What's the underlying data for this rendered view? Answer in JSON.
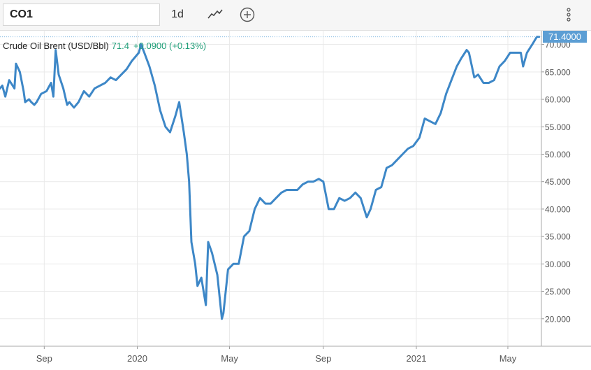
{
  "toolbar": {
    "symbol": "CO1",
    "interval": "1d",
    "icons": {
      "chart_type": "line-chart-icon",
      "add": "plus-circle-icon",
      "menu": "vertical-dots-icon"
    }
  },
  "legend": {
    "name": "Crude Oil Brent (USD/Bbl)",
    "value": "71.4",
    "change": "+0.0900 (+0.13%)",
    "color": "#1f9e78"
  },
  "price_tag": "71.4000",
  "colors": {
    "line": "#3d87c7",
    "price_tag": "#5c9ed4",
    "grid": "#e9e9e9"
  },
  "chart_data": {
    "type": "line",
    "title": "",
    "xlabel": "",
    "ylabel": "",
    "ylim": [
      15,
      72.5
    ],
    "yticks": [
      20,
      25,
      30,
      35,
      40,
      45,
      50,
      55,
      60,
      65,
      70
    ],
    "ytick_labels": [
      "20.000",
      "25.000",
      "30.000",
      "35.000",
      "40.000",
      "45.000",
      "50.000",
      "55.000",
      "60.000",
      "65.000",
      "70.000"
    ],
    "xlim": [
      "2019-07-05",
      "2021-06-14"
    ],
    "xticks": [
      "2019-09-01",
      "2020-01-01",
      "2020-05-01",
      "2020-09-01",
      "2021-01-01",
      "2021-05-01"
    ],
    "xtick_labels": [
      "Sep",
      "2020",
      "May",
      "Sep",
      "2021",
      "May"
    ],
    "grid": true,
    "y_axis_position": "right",
    "series": [
      {
        "name": "Crude Oil Brent (USD/Bbl)",
        "x": [
          "2019-07-05",
          "2019-07-08",
          "2019-07-12",
          "2019-07-17",
          "2019-07-24",
          "2019-07-26",
          "2019-07-31",
          "2019-08-05",
          "2019-08-07",
          "2019-08-12",
          "2019-08-15",
          "2019-08-19",
          "2019-08-22",
          "2019-08-28",
          "2019-09-04",
          "2019-09-10",
          "2019-09-13",
          "2019-09-16",
          "2019-09-20",
          "2019-09-26",
          "2019-10-01",
          "2019-10-04",
          "2019-10-10",
          "2019-10-16",
          "2019-10-23",
          "2019-10-30",
          "2019-11-06",
          "2019-11-13",
          "2019-11-20",
          "2019-11-27",
          "2019-12-04",
          "2019-12-11",
          "2019-12-18",
          "2019-12-25",
          "2020-01-03",
          "2020-01-06",
          "2020-01-10",
          "2020-01-17",
          "2020-01-24",
          "2020-01-31",
          "2020-02-07",
          "2020-02-13",
          "2020-02-20",
          "2020-02-25",
          "2020-03-02",
          "2020-03-06",
          "2020-03-09",
          "2020-03-12",
          "2020-03-17",
          "2020-03-20",
          "2020-03-25",
          "2020-03-31",
          "2020-04-03",
          "2020-04-08",
          "2020-04-15",
          "2020-04-21",
          "2020-04-23",
          "2020-04-29",
          "2020-05-06",
          "2020-05-13",
          "2020-05-20",
          "2020-05-27",
          "2020-06-03",
          "2020-06-10",
          "2020-06-17",
          "2020-06-24",
          "2020-07-01",
          "2020-07-08",
          "2020-07-15",
          "2020-07-22",
          "2020-07-29",
          "2020-08-05",
          "2020-08-12",
          "2020-08-19",
          "2020-08-26",
          "2020-09-01",
          "2020-09-08",
          "2020-09-15",
          "2020-09-22",
          "2020-09-29",
          "2020-10-06",
          "2020-10-13",
          "2020-10-20",
          "2020-10-28",
          "2020-11-02",
          "2020-11-09",
          "2020-11-16",
          "2020-11-23",
          "2020-11-30",
          "2020-12-07",
          "2020-12-14",
          "2020-12-21",
          "2020-12-28",
          "2021-01-05",
          "2021-01-12",
          "2021-01-19",
          "2021-01-26",
          "2021-02-02",
          "2021-02-09",
          "2021-02-16",
          "2021-02-23",
          "2021-03-01",
          "2021-03-08",
          "2021-03-11",
          "2021-03-18",
          "2021-03-23",
          "2021-03-30",
          "2021-04-06",
          "2021-04-13",
          "2021-04-20",
          "2021-04-27",
          "2021-05-04",
          "2021-05-11",
          "2021-05-18",
          "2021-05-21",
          "2021-05-26",
          "2021-06-02",
          "2021-06-08",
          "2021-06-11"
        ],
        "values": [
          62,
          62.5,
          60.5,
          63.5,
          62,
          66.5,
          65,
          61.5,
          59.5,
          60,
          59.5,
          59,
          59.5,
          61,
          61.5,
          63,
          60.5,
          69.0,
          64.5,
          62,
          59,
          59.5,
          58.5,
          59.5,
          61.5,
          60.5,
          62,
          62.5,
          63,
          64,
          63.5,
          64.5,
          65.5,
          67,
          68.5,
          70,
          68.6,
          66,
          62.5,
          58,
          55,
          54,
          57,
          59.5,
          54,
          50,
          45,
          34,
          30,
          26,
          27.5,
          22.5,
          34,
          32,
          28,
          20,
          21,
          29,
          30,
          30,
          35,
          36,
          40,
          42,
          41,
          41,
          42,
          43,
          43.5,
          43.5,
          43.5,
          44.5,
          45,
          45,
          45.5,
          45,
          40,
          40,
          42,
          41.5,
          42,
          43,
          42,
          38.5,
          40,
          43.5,
          44,
          47.5,
          48,
          49,
          50,
          51,
          51.5,
          53,
          56.5,
          56,
          55.5,
          57.5,
          61,
          63.5,
          66,
          67.5,
          69,
          68.5,
          64,
          64.5,
          63,
          63,
          63.5,
          66,
          67,
          68.5,
          68.5,
          68.5,
          66,
          68.5,
          70,
          71.4,
          71.4
        ]
      }
    ]
  }
}
